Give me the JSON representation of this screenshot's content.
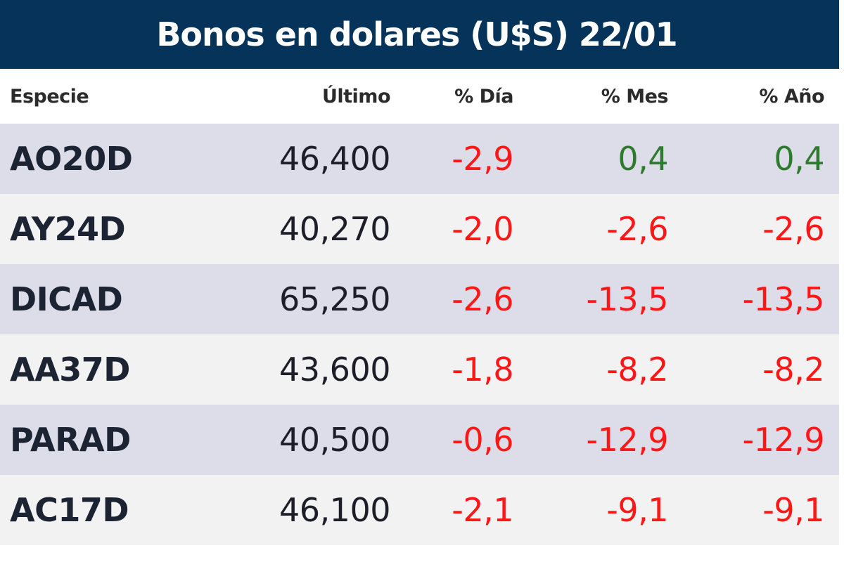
{
  "title": "Bonos en dolares (U$S) 22/01",
  "colors": {
    "title_bg": "#063359",
    "row_odd": "#dcdde8",
    "row_even": "#f2f2f2",
    "negative": "#ff1616",
    "positive": "#2e7a2e"
  },
  "columns": {
    "especie": "Especie",
    "ultimo": "Último",
    "dia": "% Día",
    "mes": "% Mes",
    "anio": "% Año"
  },
  "rows": [
    {
      "especie": "AO20D",
      "ultimo": "46,400",
      "dia": "-2,9",
      "mes": "0,4",
      "anio": "0,4"
    },
    {
      "especie": "AY24D",
      "ultimo": "40,270",
      "dia": "-2,0",
      "mes": "-2,6",
      "anio": "-2,6"
    },
    {
      "especie": "DICAD",
      "ultimo": "65,250",
      "dia": "-2,6",
      "mes": "-13,5",
      "anio": "-13,5"
    },
    {
      "especie": "AA37D",
      "ultimo": "43,600",
      "dia": "-1,8",
      "mes": "-8,2",
      "anio": "-8,2"
    },
    {
      "especie": "PARAD",
      "ultimo": "40,500",
      "dia": "-0,6",
      "mes": "-12,9",
      "anio": "-12,9"
    },
    {
      "especie": "AC17D",
      "ultimo": "46,100",
      "dia": "-2,1",
      "mes": "-9,1",
      "anio": "-9,1"
    }
  ]
}
